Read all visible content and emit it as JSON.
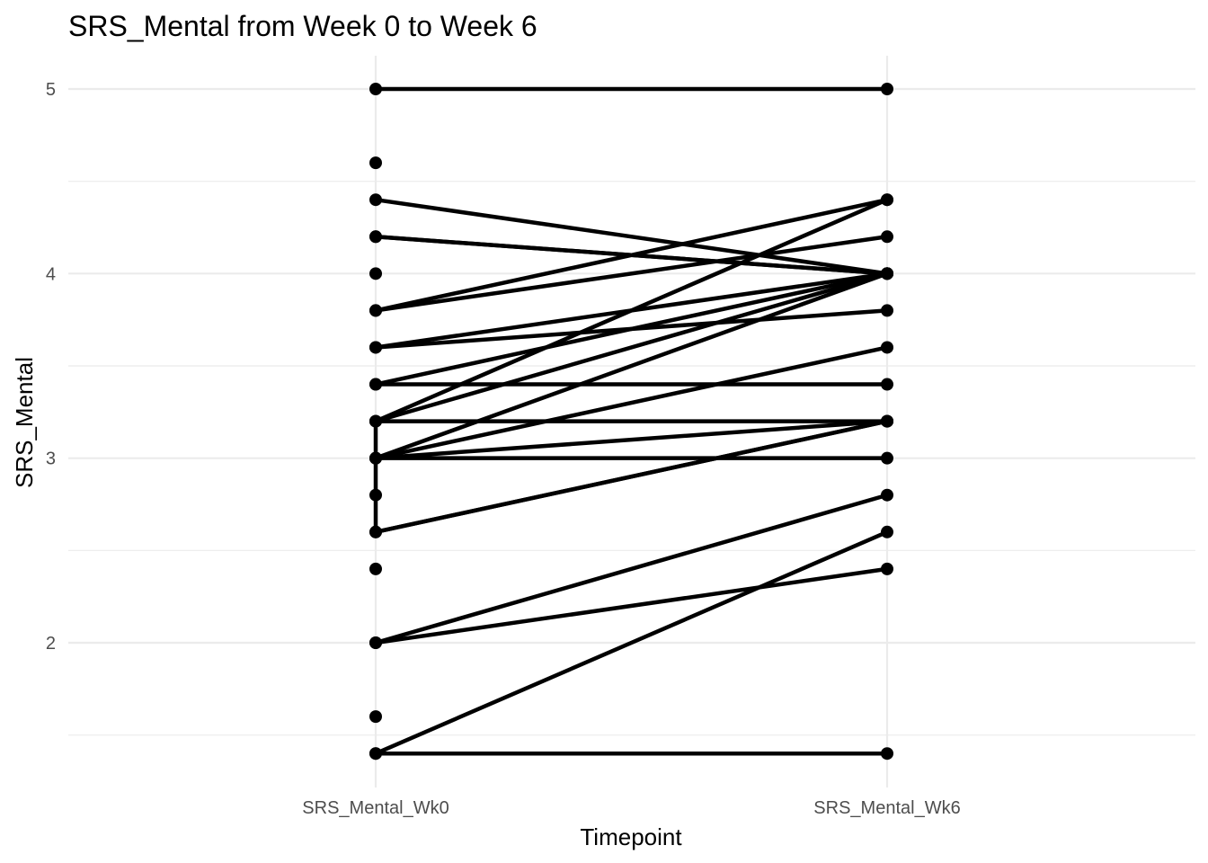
{
  "chart_data": {
    "type": "line",
    "title": "SRS_Mental from Week 0 to Week 6",
    "xlabel": "Timepoint",
    "ylabel": "SRS_Mental",
    "categories": [
      "SRS_Mental_Wk0",
      "SRS_Mental_Wk6"
    ],
    "ylim": [
      1.4,
      5.0
    ],
    "yticks": [
      2,
      3,
      4,
      5
    ],
    "grid": true,
    "legend": "none",
    "colors": {
      "line": "#000000",
      "point": "#000000",
      "grid": "#ebebeb",
      "tick_text": "#4d4d4d"
    },
    "pairs": [
      [
        5.0,
        5.0
      ],
      [
        4.4,
        4.0
      ],
      [
        4.2,
        4.0
      ],
      [
        4.2,
        4.0
      ],
      [
        3.8,
        4.4
      ],
      [
        3.8,
        4.2
      ],
      [
        3.6,
        4.0
      ],
      [
        3.6,
        3.8
      ],
      [
        3.4,
        4.0
      ],
      [
        3.4,
        3.4
      ],
      [
        3.2,
        4.4
      ],
      [
        3.2,
        4.0
      ],
      [
        3.2,
        3.2
      ],
      [
        3.0,
        4.0
      ],
      [
        3.0,
        3.6
      ],
      [
        3.0,
        3.2
      ],
      [
        3.0,
        3.0
      ],
      [
        2.6,
        3.2
      ],
      [
        2.6,
        3.2
      ],
      [
        2.0,
        2.8
      ],
      [
        2.0,
        2.4
      ],
      [
        1.4,
        2.6
      ],
      [
        1.4,
        1.4
      ]
    ],
    "wk0_only_points": [
      4.6,
      4.0,
      2.8,
      2.4,
      1.6
    ],
    "wk0_vertical_segments": [
      [
        2.6,
        3.2
      ]
    ]
  }
}
